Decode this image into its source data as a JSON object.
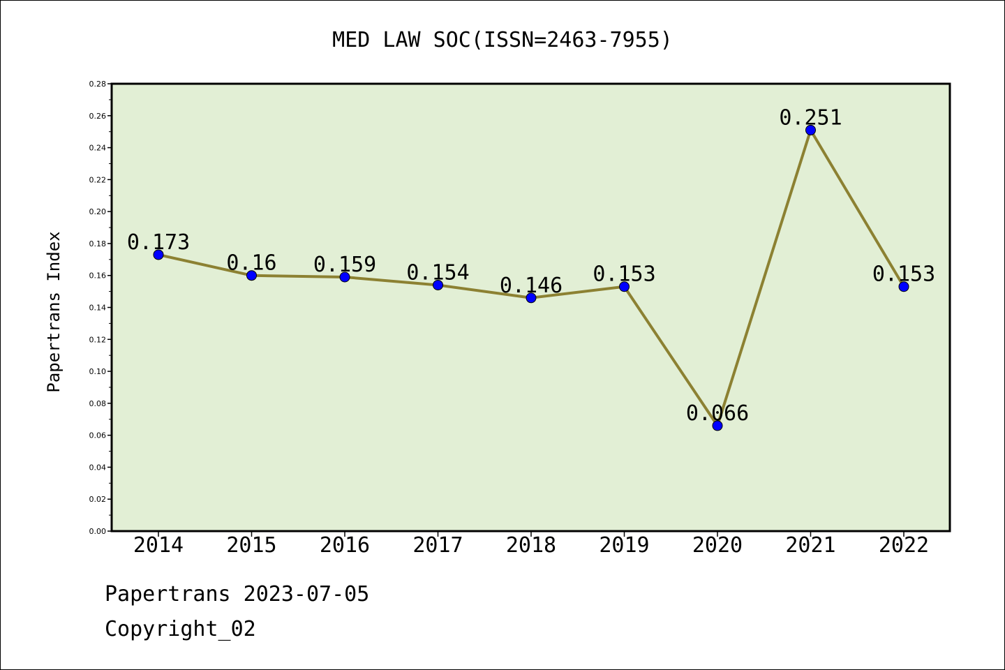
{
  "chart_data": {
    "type": "line",
    "title": "MED LAW SOC(ISSN=2463-7955)",
    "xlabel": "",
    "ylabel": "Papertrans Index",
    "categories": [
      "2014",
      "2015",
      "2016",
      "2017",
      "2018",
      "2019",
      "2020",
      "2021",
      "2022"
    ],
    "series": [
      {
        "values": [
          0.173,
          0.16,
          0.159,
          0.154,
          0.146,
          0.153,
          0.066,
          0.251,
          0.153
        ],
        "data_labels": [
          "0.173",
          "0.16",
          "0.159",
          "0.154",
          "0.146",
          "0.153",
          "0.066",
          "0.251",
          "0.153"
        ]
      }
    ],
    "ylim": [
      0,
      0.28
    ],
    "yticks": [
      "0.00",
      "0.02",
      "0.04",
      "0.06",
      "0.08",
      "0.10",
      "0.12",
      "0.14",
      "0.16",
      "0.18",
      "0.20",
      "0.22",
      "0.24",
      "0.26",
      "0.28"
    ],
    "grid": false,
    "legend": "none",
    "colors": {
      "plot_background": "#e2efd5",
      "line": "#8c8132",
      "marker": "#0000ff"
    }
  },
  "footer": {
    "date_text": "Papertrans 2023-07-05",
    "copyright_text": "Copyright_02"
  }
}
